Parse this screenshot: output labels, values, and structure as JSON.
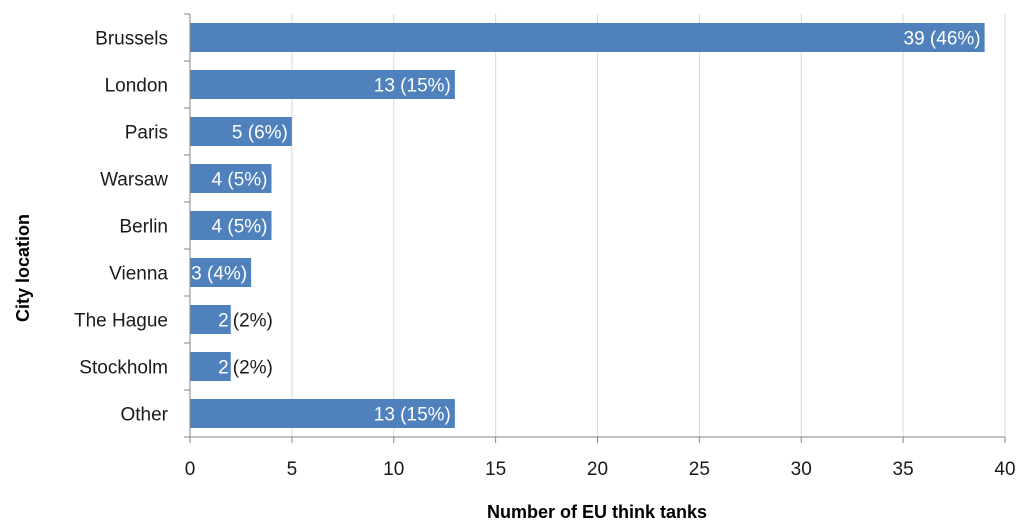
{
  "chart_data": {
    "type": "bar",
    "orientation": "horizontal",
    "categories": [
      "Brussels",
      "London",
      "Paris",
      "Warsaw",
      "Berlin",
      "Vienna",
      "The Hague",
      "Stockholm",
      "Other"
    ],
    "values": [
      39,
      13,
      5,
      4,
      4,
      3,
      2,
      2,
      13
    ],
    "data_labels": [
      {
        "value": "39",
        "pct": "(46%)"
      },
      {
        "value": "13",
        "pct": "(15%)"
      },
      {
        "value": "5",
        "pct": "(6%)"
      },
      {
        "value": "4",
        "pct": "(5%)"
      },
      {
        "value": "4",
        "pct": "(5%)"
      },
      {
        "value": "3",
        "pct": "(4%)"
      },
      {
        "value": "2",
        "pct": "(2%)"
      },
      {
        "value": "2",
        "pct": "(2%)"
      },
      {
        "value": "13",
        "pct": "(15%)"
      }
    ],
    "xlabel": "Number of EU think tanks",
    "ylabel": "City location",
    "xlim": [
      0,
      40
    ],
    "xticks": [
      "0",
      "5",
      "10",
      "15",
      "20",
      "25",
      "30",
      "35",
      "40"
    ],
    "grid": "vertical",
    "legend": "none",
    "colors": {
      "bar": "#4f81bd",
      "grid": "#d9d9d9",
      "axis": "#868686",
      "label_inside": "#ffffff",
      "label_outside": "#1a1a1a"
    }
  }
}
